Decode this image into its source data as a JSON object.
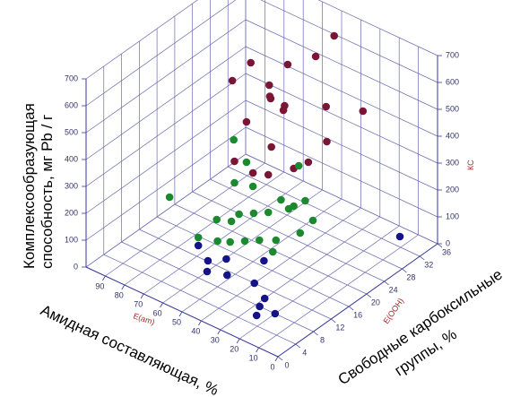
{
  "chart_data": {
    "type": "scatter",
    "projection": "3d",
    "axes": {
      "x_label": "Амидная составляющая, %",
      "x_sub_label": "E(am)",
      "x_ticks": [
        "0",
        "10",
        "20",
        "30",
        "40",
        "50",
        "60",
        "70",
        "80",
        "90"
      ],
      "x_range": [
        0,
        100
      ],
      "y_label": "Свободные карбоксильные группы, %",
      "y_sub_label": "E(OOH)",
      "y_ticks": [
        "0",
        "4",
        "8",
        "12",
        "16",
        "20",
        "24",
        "28",
        "32",
        "36"
      ],
      "y_range": [
        0,
        36
      ],
      "z_label": "Комплексообразующая способность, мг Pb / г",
      "z_sub_label": "КС",
      "z_ticks": [
        "0",
        "100",
        "200",
        "300",
        "400",
        "500",
        "600",
        "700"
      ],
      "z_range": [
        0,
        700
      ]
    },
    "grid": true,
    "series": [
      {
        "color": "#7a1535",
        "points": [
          [
            60,
            24,
            530
          ],
          [
            65,
            22,
            620
          ],
          [
            55,
            26,
            600
          ],
          [
            50,
            20,
            560
          ],
          [
            45,
            28,
            640
          ],
          [
            40,
            30,
            710
          ],
          [
            58,
            18,
            470
          ],
          [
            62,
            25,
            470
          ],
          [
            48,
            22,
            500
          ],
          [
            52,
            24,
            480
          ],
          [
            35,
            26,
            510
          ],
          [
            55,
            14,
            380
          ],
          [
            45,
            18,
            420
          ],
          [
            38,
            20,
            340
          ],
          [
            50,
            16,
            330
          ],
          [
            30,
            24,
            420
          ],
          [
            42,
            16,
            350
          ],
          [
            25,
            30,
            480
          ],
          [
            70,
            20,
            560
          ],
          [
            35,
            22,
            350
          ]
        ]
      },
      {
        "color": "#1b8a2e",
        "points": [
          [
            60,
            16,
            420
          ],
          [
            58,
            18,
            320
          ],
          [
            55,
            14,
            300
          ],
          [
            50,
            16,
            280
          ],
          [
            48,
            12,
            230
          ],
          [
            45,
            14,
            220
          ],
          [
            42,
            16,
            210
          ],
          [
            40,
            18,
            240
          ],
          [
            38,
            20,
            200
          ],
          [
            36,
            18,
            220
          ],
          [
            55,
            10,
            210
          ],
          [
            52,
            12,
            190
          ],
          [
            50,
            8,
            170
          ],
          [
            48,
            10,
            150
          ],
          [
            45,
            12,
            140
          ],
          [
            42,
            14,
            130
          ],
          [
            38,
            16,
            120
          ],
          [
            35,
            14,
            110
          ],
          [
            30,
            18,
            150
          ],
          [
            28,
            20,
            180
          ],
          [
            32,
            20,
            240
          ],
          [
            75,
            8,
            250
          ],
          [
            60,
            8,
            150
          ],
          [
            40,
            22,
            320
          ]
        ]
      },
      {
        "color": "#141488",
        "points": [
          [
            60,
            10,
            0
          ],
          [
            40,
            12,
            0
          ],
          [
            30,
            10,
            0
          ],
          [
            28,
            8,
            0
          ],
          [
            25,
            6,
            0
          ],
          [
            20,
            8,
            0
          ],
          [
            15,
            34,
            0
          ],
          [
            60,
            8,
            120
          ],
          [
            55,
            8,
            80
          ],
          [
            50,
            10,
            80
          ],
          [
            45,
            8,
            60
          ],
          [
            35,
            12,
            100
          ]
        ]
      }
    ]
  }
}
